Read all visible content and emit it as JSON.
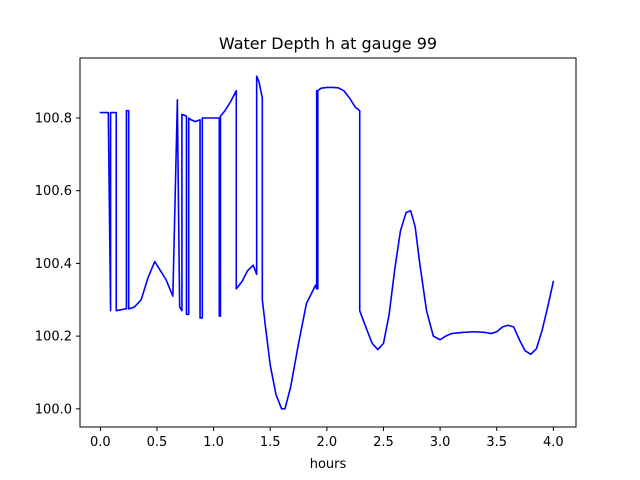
{
  "chart_data": {
    "type": "line",
    "title": "Water Depth h at gauge 99",
    "xlabel": "hours",
    "ylabel": "",
    "xlim": [
      -0.18,
      4.2
    ],
    "ylim": [
      99.95,
      100.965
    ],
    "x_ticks": [
      0.0,
      0.5,
      1.0,
      1.5,
      2.0,
      2.5,
      3.0,
      3.5,
      4.0
    ],
    "x_tick_labels": [
      "0.0",
      "0.5",
      "1.0",
      "1.5",
      "2.0",
      "2.5",
      "3.0",
      "3.5",
      "4.0"
    ],
    "y_ticks": [
      100.0,
      100.2,
      100.4,
      100.6,
      100.8
    ],
    "y_tick_labels": [
      "100.0",
      "100.2",
      "100.4",
      "100.6",
      "100.8"
    ],
    "grid": false,
    "series": [
      {
        "color": "#0000ff",
        "x": [
          0.0,
          0.07,
          0.07,
          0.09,
          0.09,
          0.14,
          0.14,
          0.22,
          0.23,
          0.23,
          0.25,
          0.25,
          0.3,
          0.36,
          0.42,
          0.48,
          0.52,
          0.58,
          0.64,
          0.68,
          0.68,
          0.7,
          0.72,
          0.72,
          0.76,
          0.76,
          0.78,
          0.78,
          0.8,
          0.84,
          0.88,
          0.88,
          0.9,
          0.9,
          0.95,
          1.0,
          1.05,
          1.05,
          1.06,
          1.06,
          1.1,
          1.15,
          1.2,
          1.2,
          1.25,
          1.3,
          1.35,
          1.38,
          1.38,
          1.4,
          1.43,
          1.43,
          1.46,
          1.5,
          1.55,
          1.6,
          1.63,
          1.68,
          1.75,
          1.82,
          1.9,
          1.91,
          1.91,
          1.92,
          1.92,
          1.94,
          1.95,
          2.0,
          2.05,
          2.1,
          2.15,
          2.2,
          2.25,
          2.29,
          2.29,
          2.35,
          2.4,
          2.45,
          2.5,
          2.55,
          2.6,
          2.65,
          2.7,
          2.74,
          2.78,
          2.82,
          2.88,
          2.94,
          3.0,
          3.05,
          3.1,
          3.2,
          3.3,
          3.4,
          3.45,
          3.5,
          3.55,
          3.6,
          3.65,
          3.7,
          3.75,
          3.8,
          3.85,
          3.9,
          3.95,
          4.0
        ],
        "y": [
          100.815,
          100.815,
          100.815,
          100.27,
          100.815,
          100.815,
          100.27,
          100.275,
          100.275,
          100.82,
          100.82,
          100.275,
          100.28,
          100.3,
          100.36,
          100.405,
          100.385,
          100.355,
          100.31,
          100.85,
          100.835,
          100.28,
          100.27,
          100.81,
          100.805,
          100.26,
          100.26,
          100.8,
          100.795,
          100.79,
          100.795,
          100.25,
          100.25,
          100.8,
          100.8,
          100.8,
          100.8,
          100.255,
          100.255,
          100.805,
          100.82,
          100.845,
          100.875,
          100.33,
          100.35,
          100.38,
          100.395,
          100.37,
          100.915,
          100.9,
          100.855,
          100.3,
          100.22,
          100.12,
          100.04,
          100.0,
          100.0,
          100.06,
          100.18,
          100.29,
          100.34,
          100.33,
          100.875,
          100.33,
          100.875,
          100.88,
          100.882,
          100.884,
          100.884,
          100.883,
          100.875,
          100.855,
          100.83,
          100.82,
          100.27,
          100.22,
          100.18,
          100.163,
          100.18,
          100.26,
          100.385,
          100.49,
          100.54,
          100.545,
          100.5,
          100.4,
          100.27,
          100.2,
          100.19,
          100.2,
          100.207,
          100.21,
          100.212,
          100.21,
          100.207,
          100.212,
          100.225,
          100.23,
          100.225,
          100.19,
          100.16,
          100.15,
          100.165,
          100.215,
          100.28,
          100.35
        ]
      }
    ]
  }
}
